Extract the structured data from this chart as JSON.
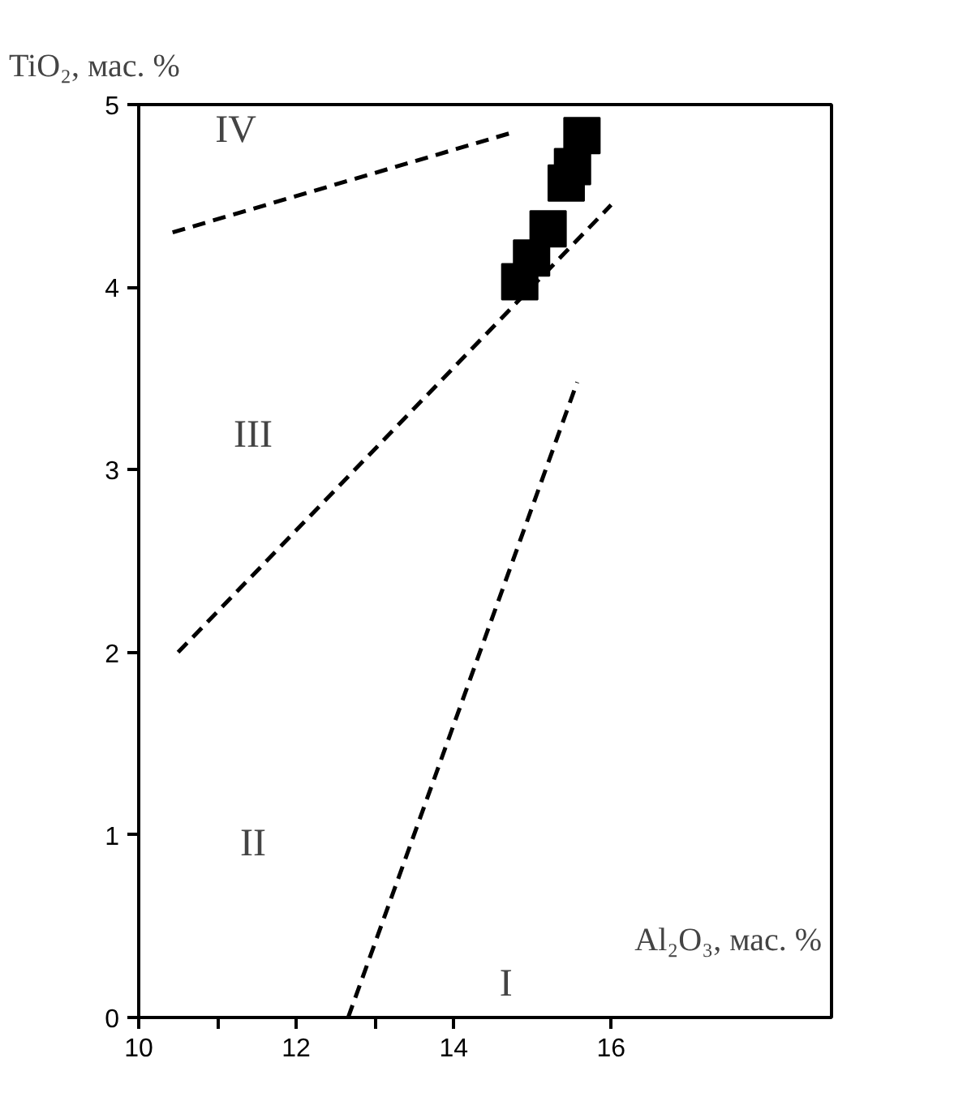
{
  "chart_data": {
    "type": "scatter",
    "xlabel": "Al₂O₃, мас. %",
    "ylabel": "TiO₂, мас. %",
    "xlim": [
      10,
      18.8
    ],
    "ylim": [
      0,
      5
    ],
    "xticks": [
      10,
      {
        "value": 11,
        "label": null
      },
      12,
      {
        "value": 13,
        "label": null
      },
      14,
      16
    ],
    "yticks": [
      0,
      1,
      2,
      3,
      4,
      5
    ],
    "grid": false,
    "series": [
      {
        "color": "#000000",
        "marker": "square",
        "x": [
          14.84,
          14.99,
          15.2,
          15.43,
          15.51,
          15.63
        ],
        "values": [
          4.03,
          4.16,
          4.32,
          4.57,
          4.66,
          4.83
        ]
      },
      {
        "type": "line",
        "color": "#000000",
        "line_style": "dashed",
        "marker": "none",
        "x": [
          12.66,
          15.57
        ],
        "values": [
          0,
          3.48
        ]
      },
      {
        "type": "line",
        "color": "#000000",
        "line_style": "dashed",
        "marker": "none",
        "x": [
          10.5,
          16.0
        ],
        "values": [
          2.0,
          4.45
        ]
      },
      {
        "type": "line",
        "color": "#000000",
        "line_style": "dashed",
        "marker": "none",
        "x": [
          10.43,
          14.77
        ],
        "values": [
          4.3,
          4.85
        ]
      }
    ],
    "annotations": [
      "IV",
      "III",
      "II",
      "I"
    ]
  }
}
